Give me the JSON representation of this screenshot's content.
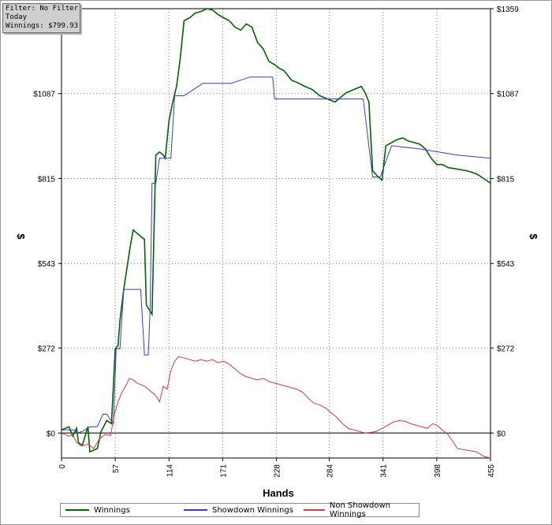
{
  "infobox": {
    "filter": "Filter: No Filter",
    "period": "Today",
    "winnings": "Winnings: $799.93"
  },
  "legend": {
    "winnings": "Winnings",
    "showdown": "Showdown Winnings",
    "nonshowdown": "Non Showdown Winnings"
  },
  "colors": {
    "winnings": "#006400",
    "showdown": "#3c3cc8",
    "nonshowdown": "#d23c3c",
    "grid": "#8c8c8c",
    "zero_line": "#000000"
  },
  "chart_data": {
    "type": "line",
    "xlabel": "Hands",
    "ylabel": "$",
    "xlim": [
      0,
      455
    ],
    "ylim": [
      -80,
      1359
    ],
    "x_ticks": [
      0,
      57,
      114,
      171,
      228,
      284,
      341,
      398,
      455
    ],
    "y_ticks": [
      0,
      272,
      543,
      815,
      1087,
      1359
    ],
    "y_tick_labels": [
      "$0",
      "$272",
      "$543",
      "$815",
      "$1087",
      "$1359"
    ],
    "grid": true,
    "legend_position": "bottom",
    "series": [
      {
        "name": "Winnings",
        "x": [
          0,
          8,
          12,
          16,
          18,
          22,
          28,
          30,
          34,
          38,
          42,
          48,
          53,
          57,
          60,
          62,
          66,
          68,
          70,
          73,
          76,
          80,
          84,
          88,
          90,
          92,
          96,
          100,
          104,
          108,
          110,
          112,
          114,
          118,
          122,
          126,
          130,
          136,
          142,
          148,
          154,
          160,
          166,
          172,
          178,
          184,
          190,
          196,
          202,
          208,
          214,
          220,
          226,
          230,
          236,
          244,
          252,
          258,
          266,
          274,
          282,
          290,
          296,
          302,
          310,
          318,
          322,
          326,
          330,
          336,
          340,
          344,
          350,
          356,
          362,
          368,
          374,
          380,
          386,
          392,
          398,
          404,
          410,
          420,
          430,
          440,
          448,
          455
        ],
        "y": [
          10,
          20,
          -10,
          15,
          -30,
          -40,
          20,
          -60,
          -55,
          -50,
          5,
          40,
          30,
          270,
          280,
          360,
          460,
          500,
          540,
          600,
          650,
          640,
          630,
          620,
          410,
          400,
          380,
          890,
          900,
          890,
          880,
          940,
          1000,
          1060,
          1110,
          1200,
          1320,
          1330,
          1345,
          1350,
          1359,
          1355,
          1340,
          1330,
          1320,
          1300,
          1290,
          1310,
          1300,
          1250,
          1230,
          1190,
          1180,
          1170,
          1160,
          1130,
          1120,
          1110,
          1100,
          1080,
          1070,
          1060,
          1075,
          1090,
          1100,
          1110,
          1090,
          1060,
          840,
          820,
          810,
          920,
          930,
          940,
          945,
          935,
          930,
          925,
          910,
          880,
          860,
          860,
          850,
          845,
          840,
          830,
          815,
          800
        ]
      },
      {
        "name": "Showdown Winnings",
        "x": [
          0,
          14,
          16,
          22,
          30,
          38,
          44,
          48,
          55,
          58,
          62,
          66,
          76,
          84,
          88,
          92,
          94,
          96,
          100,
          104,
          108,
          112,
          116,
          120,
          130,
          140,
          150,
          160,
          170,
          180,
          190,
          200,
          210,
          224,
          226,
          240,
          260,
          280,
          300,
          320,
          330,
          338,
          350,
          380,
          420,
          455
        ],
        "y": [
          10,
          10,
          0,
          5,
          20,
          20,
          60,
          60,
          30,
          270,
          270,
          460,
          460,
          460,
          250,
          250,
          400,
          800,
          800,
          880,
          880,
          880,
          880,
          1080,
          1080,
          1100,
          1120,
          1120,
          1120,
          1120,
          1130,
          1140,
          1140,
          1140,
          1070,
          1070,
          1070,
          1070,
          1070,
          1070,
          820,
          820,
          920,
          910,
          890,
          880
        ]
      },
      {
        "name": "Non Showdown Winnings",
        "x": [
          0,
          8,
          12,
          16,
          20,
          24,
          28,
          34,
          40,
          46,
          52,
          56,
          60,
          64,
          68,
          72,
          76,
          80,
          84,
          88,
          92,
          96,
          100,
          104,
          108,
          112,
          116,
          120,
          124,
          130,
          136,
          142,
          148,
          154,
          160,
          166,
          172,
          178,
          184,
          190,
          196,
          202,
          208,
          214,
          220,
          226,
          232,
          238,
          244,
          250,
          256,
          262,
          268,
          274,
          280,
          286,
          292,
          298,
          304,
          310,
          316,
          322,
          328,
          334,
          340,
          346,
          352,
          358,
          364,
          370,
          376,
          382,
          388,
          394,
          398,
          404,
          410,
          420,
          430,
          440,
          448,
          455
        ],
        "y": [
          0,
          -10,
          -5,
          -30,
          -40,
          -40,
          -35,
          -50,
          -20,
          -5,
          -8,
          60,
          100,
          130,
          150,
          175,
          170,
          160,
          155,
          150,
          140,
          130,
          120,
          100,
          150,
          140,
          200,
          230,
          245,
          240,
          235,
          230,
          235,
          230,
          235,
          225,
          230,
          220,
          205,
          190,
          180,
          175,
          170,
          175,
          165,
          160,
          155,
          150,
          145,
          140,
          130,
          110,
          95,
          90,
          80,
          65,
          50,
          30,
          15,
          10,
          5,
          0,
          2,
          5,
          15,
          25,
          35,
          40,
          38,
          30,
          25,
          20,
          15,
          30,
          25,
          10,
          -5,
          -50,
          -55,
          -60,
          -75,
          -80
        ]
      }
    ]
  }
}
